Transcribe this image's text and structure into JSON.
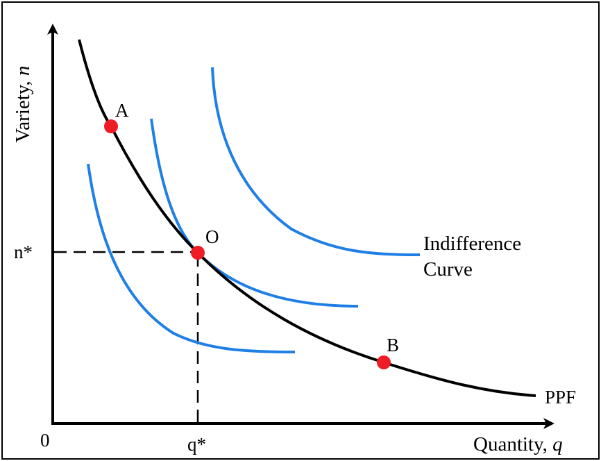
{
  "axes": {
    "y_label_main": "Variety, ",
    "y_label_var": "n",
    "x_label_main": "Quantity, ",
    "x_label_var": "q",
    "origin": "0",
    "n_star": "n*",
    "q_star": "q*"
  },
  "points": {
    "a": "A",
    "o": "O",
    "b": "B"
  },
  "labels": {
    "indifference_line1": "Indifference",
    "indifference_line2": "Curve",
    "ppf": "PPF"
  },
  "colors": {
    "ppf": "#000000",
    "indifference": "#1f7fe5",
    "points": "#ee1c25",
    "axes": "#000000"
  }
}
